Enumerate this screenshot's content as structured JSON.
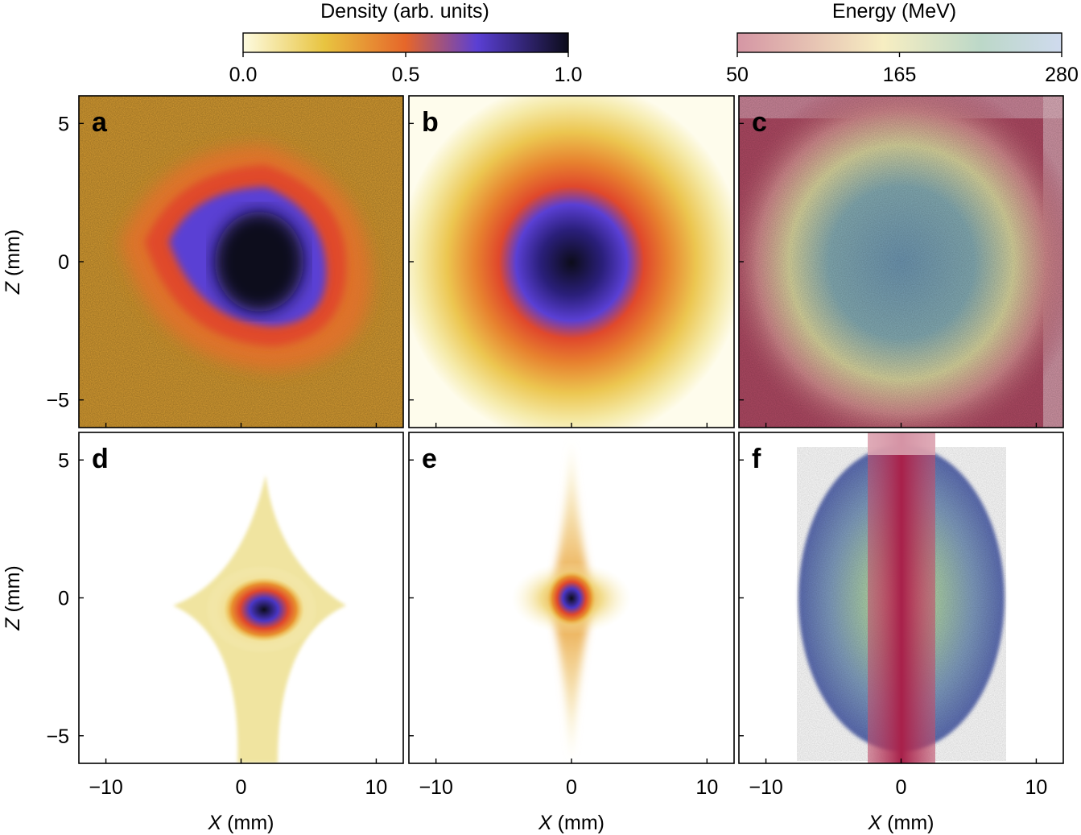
{
  "chart_data": {
    "type": "heatmap",
    "layout": "2x3 grid",
    "colorbars": [
      {
        "title": "Density (arb. units)",
        "range": [
          0.0,
          1.0
        ],
        "ticks": [
          0.0,
          0.5,
          1.0
        ],
        "tick_labels": [
          "0.0",
          "0.5",
          "1.0"
        ],
        "colors": [
          "#fdfbe0",
          "#e8c440",
          "#e6662a",
          "#5a3fd4",
          "#0c0c1a"
        ]
      },
      {
        "title": "Energy (MeV)",
        "range": [
          50,
          280
        ],
        "ticks": [
          50,
          165,
          280
        ],
        "tick_labels": [
          "50",
          "165",
          "280"
        ],
        "colors": [
          "#d596a4",
          "#f7eec2",
          "#bcd8c8",
          "#cfdaee"
        ]
      }
    ],
    "xlabel_var": "X",
    "xlabel_unit": "(mm)",
    "ylabel_var": "Z",
    "ylabel_unit": "(mm)",
    "xlim": [
      -12,
      12
    ],
    "ylim": [
      -6,
      6
    ],
    "xticks": [
      -10,
      0,
      10
    ],
    "xtick_labels": [
      "−10",
      "0",
      "10"
    ],
    "yticks": [
      5,
      0,
      -5
    ],
    "ytick_labels": [
      "5",
      "0",
      "−5"
    ],
    "panels": [
      {
        "letter": "a",
        "kind": "density",
        "description_free": true,
        "center": [
          1.5,
          0.0
        ],
        "blob_size": [
          3.6,
          3.8
        ],
        "background_level": 0.3
      },
      {
        "letter": "b",
        "kind": "density",
        "center": [
          0.2,
          0.0
        ],
        "blob_size": [
          2.6,
          2.7
        ],
        "background_level": 0.0
      },
      {
        "letter": "c",
        "kind": "energy",
        "center": [
          0.2,
          0.0
        ],
        "blob_size": [
          5.5,
          5.5
        ]
      },
      {
        "letter": "d",
        "kind": "density",
        "center": [
          1.7,
          -0.5
        ],
        "blob_size": [
          1.4,
          0.9
        ]
      },
      {
        "letter": "e",
        "kind": "density",
        "center": [
          0.0,
          0.0
        ],
        "blob_size": [
          0.9,
          0.9
        ]
      },
      {
        "letter": "f",
        "kind": "energy",
        "center": [
          0.0,
          0.0
        ],
        "blob_size": [
          7.0,
          5.8
        ]
      }
    ]
  }
}
